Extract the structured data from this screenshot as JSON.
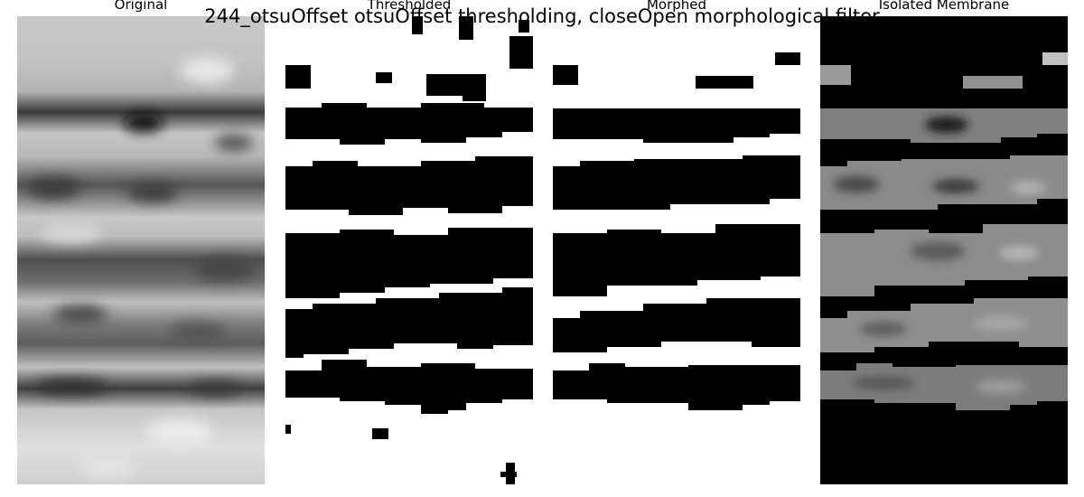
{
  "figure": {
    "suptitle": "244_otsuOffset otsuOffset thresholding, closeOpen morphological filter"
  },
  "panels": [
    {
      "id": "original",
      "title": "Original"
    },
    {
      "id": "thresholded",
      "title": "Thresholded"
    },
    {
      "id": "morphed",
      "title": "Morphed"
    },
    {
      "id": "isolated",
      "title": "Isolated Membrane"
    }
  ]
}
